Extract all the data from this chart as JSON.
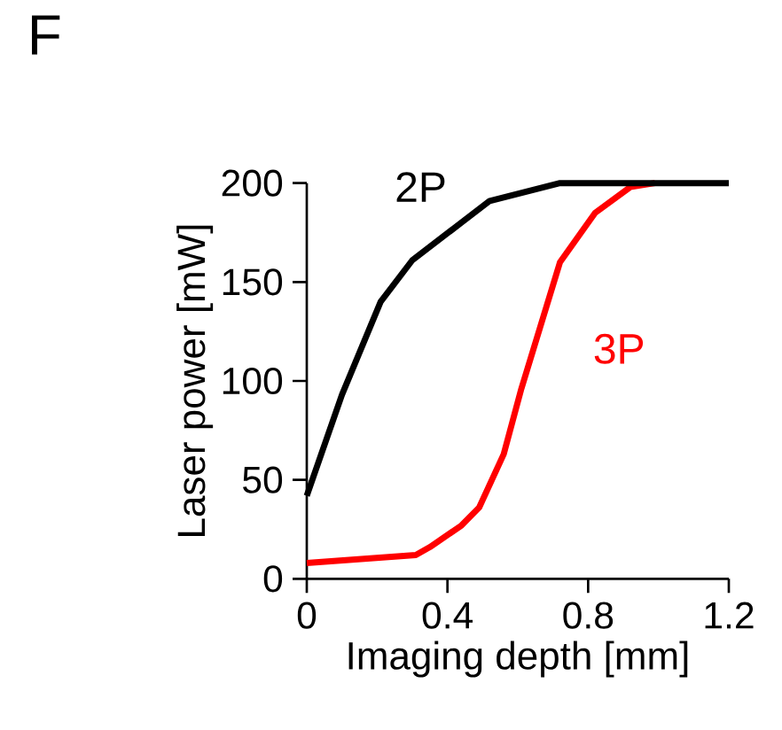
{
  "chart_data": {
    "type": "line",
    "xlabel": "Imaging depth [mm]",
    "ylabel": "Laser power [mW]",
    "annotations": [
      "F"
    ],
    "xlim": [
      0,
      1.2
    ],
    "ylim": [
      0,
      200
    ],
    "xticks": [
      0,
      0.4,
      0.8,
      1.2
    ],
    "yticks": [
      0,
      50,
      100,
      150,
      200
    ],
    "grid": false,
    "legend": false,
    "marker": "none",
    "line_style": "solid",
    "series": [
      {
        "name": "2P",
        "color": "#000000",
        "x": [
          0,
          0.1,
          0.21,
          0.3,
          0.52,
          0.72,
          1.2
        ],
        "values": [
          42,
          93,
          140,
          161,
          191,
          200,
          200
        ]
      },
      {
        "name": "3P",
        "color": "#ff0000",
        "x": [
          0,
          0.31,
          0.35,
          0.44,
          0.49,
          0.56,
          0.61,
          0.72,
          0.82,
          0.92,
          0.99
        ],
        "values": [
          8,
          12,
          16,
          27,
          36,
          63,
          96,
          160,
          185,
          198,
          200
        ]
      }
    ]
  }
}
